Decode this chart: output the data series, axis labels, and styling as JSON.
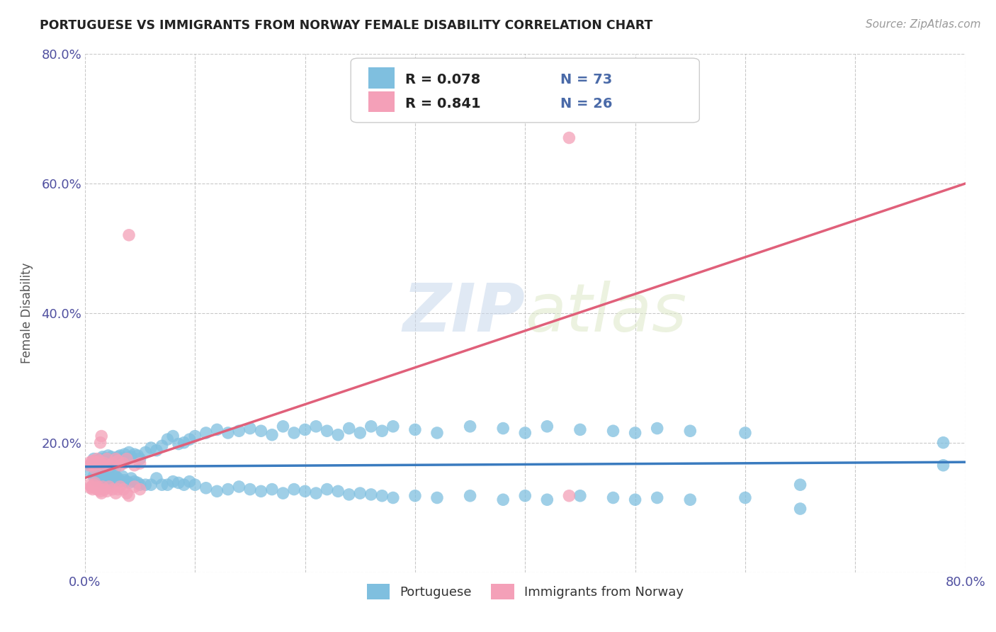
{
  "title": "PORTUGUESE VS IMMIGRANTS FROM NORWAY FEMALE DISABILITY CORRELATION CHART",
  "source": "Source: ZipAtlas.com",
  "ylabel": "Female Disability",
  "x_min": 0.0,
  "x_max": 0.8,
  "y_min": 0.0,
  "y_max": 0.8,
  "blue_R": 0.078,
  "blue_N": 73,
  "pink_R": 0.841,
  "pink_N": 26,
  "blue_color": "#7fbfdf",
  "pink_color": "#f4a0b8",
  "blue_line_color": "#3a7bbf",
  "pink_line_color": "#e0607a",
  "watermark_zip": "ZIP",
  "watermark_atlas": "atlas",
  "legend_label_blue": "Portuguese",
  "legend_label_pink": "Immigrants from Norway",
  "blue_scatter_x": [
    0.005,
    0.008,
    0.01,
    0.011,
    0.012,
    0.013,
    0.014,
    0.015,
    0.016,
    0.017,
    0.018,
    0.019,
    0.02,
    0.021,
    0.022,
    0.023,
    0.024,
    0.025,
    0.026,
    0.027,
    0.028,
    0.03,
    0.032,
    0.034,
    0.036,
    0.038,
    0.04,
    0.042,
    0.045,
    0.048,
    0.05,
    0.055,
    0.06,
    0.065,
    0.07,
    0.075,
    0.08,
    0.085,
    0.09,
    0.095,
    0.1,
    0.11,
    0.12,
    0.13,
    0.14,
    0.15,
    0.16,
    0.17,
    0.18,
    0.19,
    0.2,
    0.21,
    0.22,
    0.23,
    0.24,
    0.25,
    0.26,
    0.27,
    0.28,
    0.3,
    0.32,
    0.35,
    0.38,
    0.4,
    0.42,
    0.45,
    0.48,
    0.5,
    0.52,
    0.55,
    0.6,
    0.65,
    0.78
  ],
  "blue_scatter_y": [
    0.165,
    0.175,
    0.17,
    0.168,
    0.172,
    0.165,
    0.16,
    0.175,
    0.178,
    0.162,
    0.17,
    0.168,
    0.175,
    0.18,
    0.172,
    0.165,
    0.178,
    0.17,
    0.165,
    0.175,
    0.162,
    0.178,
    0.18,
    0.175,
    0.182,
    0.175,
    0.185,
    0.178,
    0.182,
    0.18,
    0.175,
    0.185,
    0.192,
    0.188,
    0.195,
    0.205,
    0.21,
    0.198,
    0.2,
    0.205,
    0.21,
    0.215,
    0.22,
    0.215,
    0.218,
    0.222,
    0.218,
    0.212,
    0.225,
    0.215,
    0.22,
    0.225,
    0.218,
    0.212,
    0.222,
    0.215,
    0.225,
    0.218,
    0.225,
    0.22,
    0.215,
    0.225,
    0.222,
    0.215,
    0.225,
    0.22,
    0.218,
    0.215,
    0.222,
    0.218,
    0.215,
    0.135,
    0.2
  ],
  "blue_scatter_y_extra": [
    0.155,
    0.148,
    0.142,
    0.15,
    0.145,
    0.148,
    0.152,
    0.145,
    0.138,
    0.142,
    0.148,
    0.145,
    0.15,
    0.142,
    0.148,
    0.145,
    0.138,
    0.145,
    0.148,
    0.14,
    0.148,
    0.145,
    0.14,
    0.148,
    0.142,
    0.14,
    0.138,
    0.145,
    0.14,
    0.138,
    0.135,
    0.135,
    0.135,
    0.145,
    0.135,
    0.135,
    0.14,
    0.138,
    0.135,
    0.14,
    0.135,
    0.13,
    0.125,
    0.128,
    0.132,
    0.128,
    0.125,
    0.128,
    0.122,
    0.128,
    0.125,
    0.122,
    0.128,
    0.125,
    0.12,
    0.122,
    0.12,
    0.118,
    0.115,
    0.118,
    0.115,
    0.118,
    0.112,
    0.118,
    0.112,
    0.118,
    0.115,
    0.112,
    0.115,
    0.112,
    0.115,
    0.098,
    0.165
  ],
  "pink_scatter_x": [
    0.004,
    0.005,
    0.006,
    0.007,
    0.008,
    0.009,
    0.01,
    0.011,
    0.012,
    0.013,
    0.014,
    0.015,
    0.016,
    0.018,
    0.02,
    0.022,
    0.025,
    0.028,
    0.03,
    0.032,
    0.035,
    0.038,
    0.04,
    0.045,
    0.05,
    0.44
  ],
  "pink_scatter_y": [
    0.165,
    0.17,
    0.168,
    0.172,
    0.165,
    0.16,
    0.17,
    0.175,
    0.168,
    0.172,
    0.2,
    0.21,
    0.165,
    0.168,
    0.175,
    0.165,
    0.168,
    0.175,
    0.172,
    0.165,
    0.168,
    0.175,
    0.52,
    0.165,
    0.168,
    0.67
  ],
  "pink_scatter_y_low": [
    0.135,
    0.13,
    0.132,
    0.128,
    0.135,
    0.138,
    0.13,
    0.128,
    0.132,
    0.128,
    0.125,
    0.122,
    0.132,
    0.128,
    0.125,
    0.132,
    0.128,
    0.122,
    0.128,
    0.132,
    0.128,
    0.122,
    0.118,
    0.132,
    0.128,
    0.118
  ]
}
